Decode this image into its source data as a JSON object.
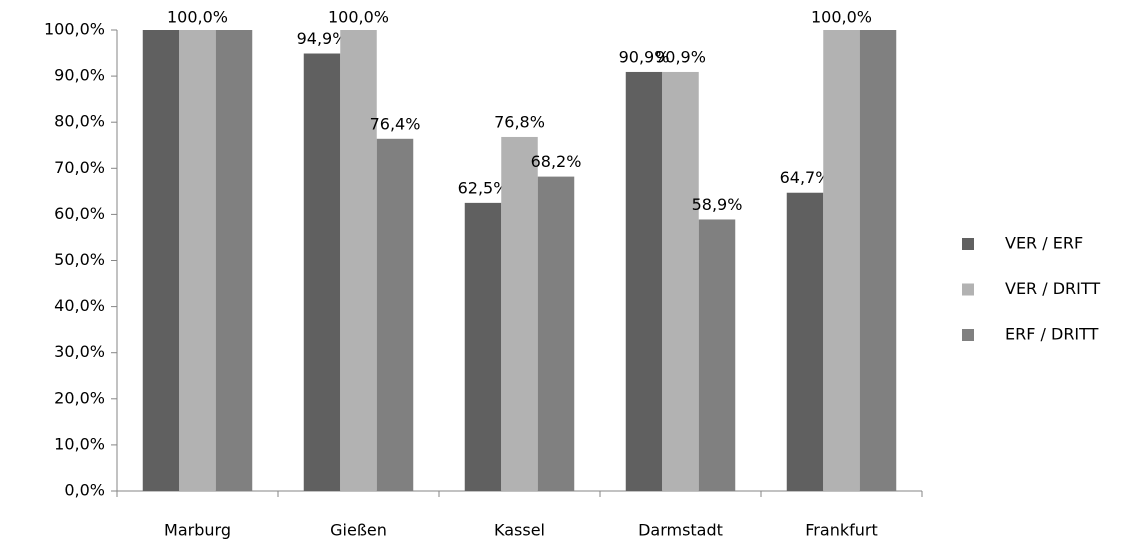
{
  "chart_data": {
    "type": "bar",
    "categories": [
      "Marburg",
      "Gießen",
      "Kassel",
      "Darmstadt",
      "Frankfurt"
    ],
    "series": [
      {
        "name": "VER / ERF",
        "color": "#606060",
        "values": [
          100,
          94.9,
          62.5,
          90.9,
          64.7
        ],
        "value_labels": [
          null,
          "94,9%",
          "62,5%",
          "90,9%",
          "64,7%"
        ]
      },
      {
        "name": "VER / DRITT",
        "color": "#b2b2b2",
        "values": [
          100,
          100,
          76.8,
          90.9,
          100
        ],
        "value_labels": [
          "100,0%",
          "100,0%",
          "76,8%",
          "90,9%",
          "100,0%"
        ]
      },
      {
        "name": "ERF / DRITT",
        "color": "#808080",
        "values": [
          100,
          76.4,
          68.2,
          58.9,
          100
        ],
        "value_labels": [
          null,
          "76,4%",
          "68,2%",
          "58,9%",
          null
        ]
      }
    ],
    "ylim": [
      0,
      100
    ],
    "yticks": [
      {
        "value": 0,
        "label": "0,0%"
      },
      {
        "value": 10,
        "label": "10,0%"
      },
      {
        "value": 20,
        "label": "20,0%"
      },
      {
        "value": 30,
        "label": "30,0%"
      },
      {
        "value": 40,
        "label": "40,0%"
      },
      {
        "value": 50,
        "label": "50,0%"
      },
      {
        "value": 60,
        "label": "60,0%"
      },
      {
        "value": 70,
        "label": "70,0%"
      },
      {
        "value": 80,
        "label": "80,0%"
      },
      {
        "value": 90,
        "label": "90,0%"
      },
      {
        "value": 100,
        "label": "100,0%"
      }
    ],
    "grid": false,
    "legend": "right"
  }
}
